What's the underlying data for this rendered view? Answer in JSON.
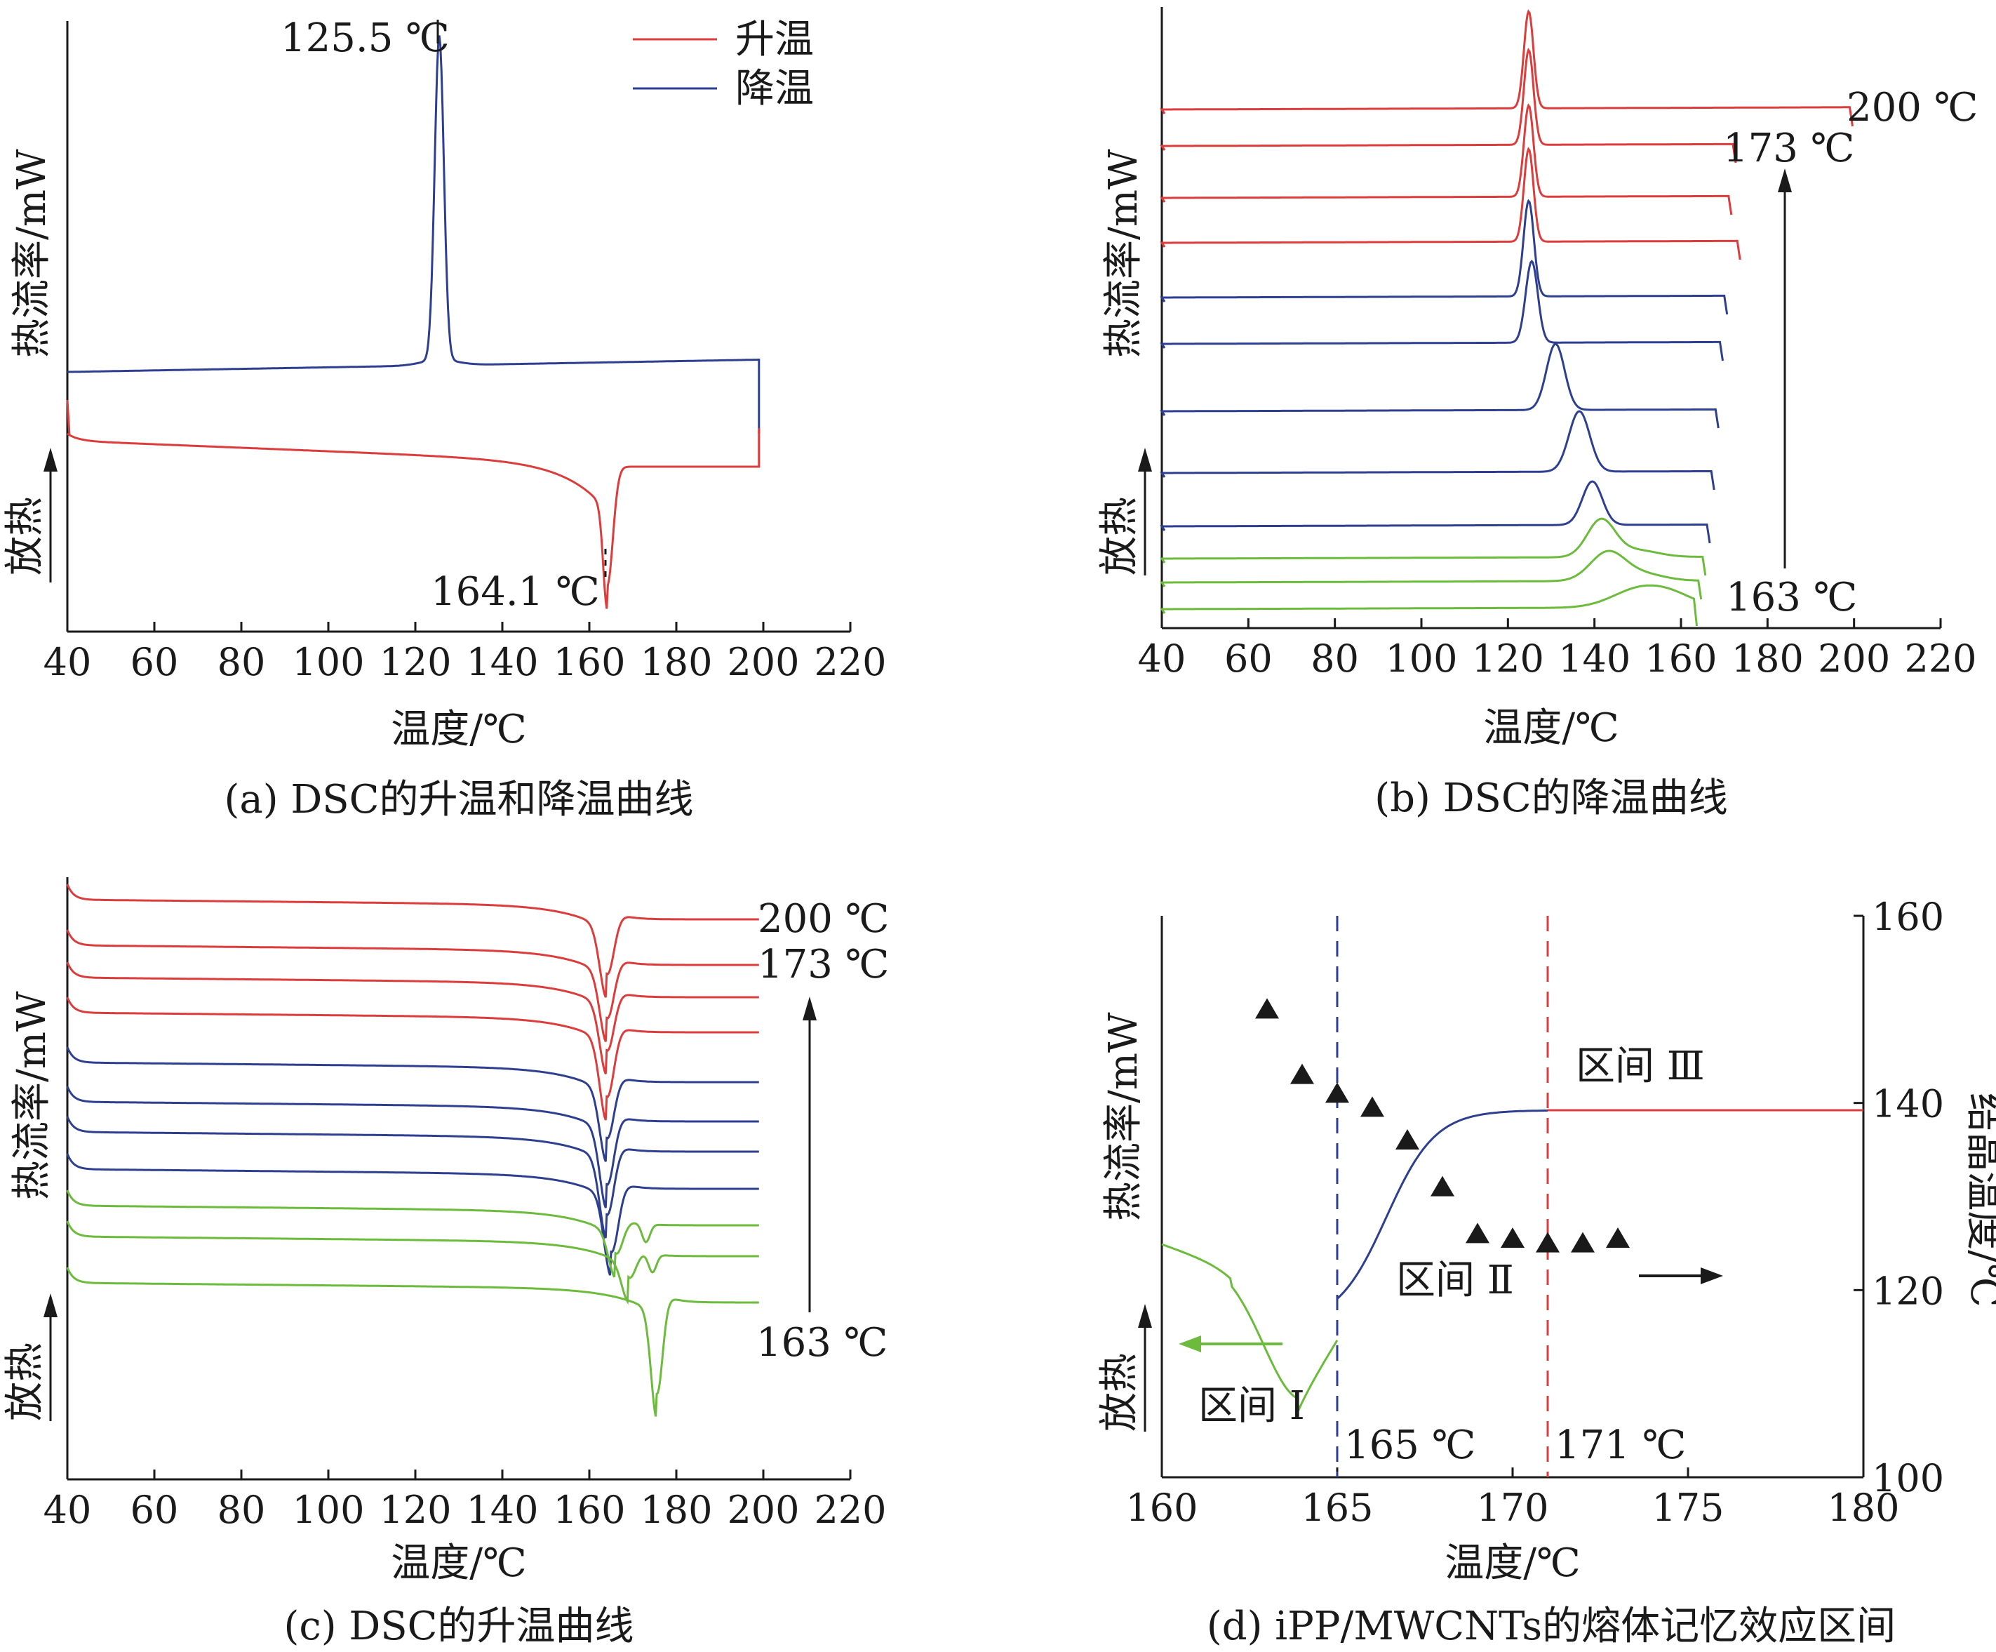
{
  "colors": {
    "heat": "#dc3c3c",
    "cool": "#2e3f8f",
    "green": "#6cbb3c",
    "axis": "#1a1a1a"
  },
  "common": {
    "xlabel": "温度/℃",
    "ylabel": "热流率/mW",
    "exo_label": "放热"
  },
  "chart_data": [
    {
      "id": "a",
      "type": "line",
      "caption": "(a) DSC的升温和降温曲线",
      "xlabel": "温度/℃",
      "ylabel": "热流率/mW",
      "xlim": [
        40,
        220
      ],
      "xticks": [
        "40",
        "60",
        "80",
        "100",
        "120",
        "140",
        "160",
        "180",
        "200",
        "220"
      ],
      "legend": {
        "position": "top-right",
        "items": [
          {
            "name": "升温",
            "color": "#dc3c3c"
          },
          {
            "name": "降温",
            "color": "#2e3f8f"
          }
        ]
      },
      "series": [
        {
          "name": "降温",
          "kind": "cool",
          "x_start": 40,
          "x_end": 199,
          "peak_x": 125.5,
          "direction": "exo"
        },
        {
          "name": "升温",
          "kind": "heat",
          "x_start": 40,
          "x_end": 199,
          "peak_x": 164.1,
          "direction": "endo"
        }
      ],
      "annotations": [
        {
          "text": "125.5 ℃",
          "x": 125.5
        },
        {
          "text": "164.1 ℃",
          "x": 164.1
        }
      ]
    },
    {
      "id": "b",
      "type": "line",
      "caption": "(b) DSC的降温曲线",
      "xlabel": "温度/℃",
      "ylabel": "热流率/mW",
      "xlim": [
        40,
        220
      ],
      "xticks": [
        "40",
        "60",
        "80",
        "100",
        "120",
        "140",
        "160",
        "180",
        "200",
        "220"
      ],
      "curves": [
        {
          "color": "heat",
          "peak_x": 124.8,
          "x_end": 199
        },
        {
          "color": "heat",
          "peak_x": 124.8,
          "x_end": 172
        },
        {
          "color": "heat",
          "peak_x": 124.8,
          "x_end": 171
        },
        {
          "color": "heat",
          "peak_x": 124.8,
          "x_end": 173
        },
        {
          "color": "cool",
          "peak_x": 124.8,
          "x_end": 170
        },
        {
          "color": "cool",
          "peak_x": 125.5,
          "x_end": 169
        },
        {
          "color": "cool",
          "peak_x": 131,
          "x_end": 168
        },
        {
          "color": "cool",
          "peak_x": 136.5,
          "x_end": 167
        },
        {
          "color": "cool",
          "peak_x": 139.5,
          "x_end": 166
        },
        {
          "color": "green",
          "peak_x": 141.5,
          "x_end": 165
        },
        {
          "color": "green",
          "peak_x": 143,
          "x_end": 164
        },
        {
          "color": "green",
          "peak_x": 151,
          "x_end": 163
        }
      ],
      "annotations": [
        {
          "text": "200 ℃"
        },
        {
          "text": "173 ℃"
        },
        {
          "text": "163 ℃"
        }
      ]
    },
    {
      "id": "c",
      "type": "line",
      "caption": "(c) DSC的升温曲线",
      "xlabel": "温度/℃",
      "ylabel": "热流率/mW",
      "xlim": [
        40,
        220
      ],
      "xticks": [
        "40",
        "60",
        "80",
        "100",
        "120",
        "140",
        "160",
        "180",
        "200",
        "220"
      ],
      "curves": [
        {
          "color": "heat",
          "peak_x": 164
        },
        {
          "color": "heat",
          "peak_x": 164
        },
        {
          "color": "heat",
          "peak_x": 164
        },
        {
          "color": "heat",
          "peak_x": 164
        },
        {
          "color": "cool",
          "peak_x": 164
        },
        {
          "color": "cool",
          "peak_x": 164
        },
        {
          "color": "cool",
          "peak_x": 164
        },
        {
          "color": "cool",
          "peak_x": 165
        },
        {
          "color": "green",
          "peak_x": 166,
          "second_x": 173
        },
        {
          "color": "green",
          "peak_x": 169,
          "second_x": 174.5
        },
        {
          "color": "green",
          "peak_x": 175.5
        }
      ],
      "annotations": [
        {
          "text": "200 ℃"
        },
        {
          "text": "173 ℃"
        },
        {
          "text": "163 ℃"
        }
      ]
    },
    {
      "id": "d",
      "type": "scatter",
      "caption": "(d) iPP/MWCNTs的熔体记忆效应区间",
      "xlabel": "温度/℃",
      "ylabel": "热流率/mW",
      "y2label": "结晶温度/℃",
      "xlim": [
        160,
        180
      ],
      "y2lim": [
        100,
        160
      ],
      "xticks": [
        "160",
        "165",
        "170",
        "175",
        "180"
      ],
      "y2ticks": [
        "100",
        "120",
        "140",
        "160"
      ],
      "points": [
        {
          "x": 163,
          "y": 150
        },
        {
          "x": 164,
          "y": 143
        },
        {
          "x": 165,
          "y": 141
        },
        {
          "x": 166,
          "y": 139.5
        },
        {
          "x": 167,
          "y": 136
        },
        {
          "x": 168,
          "y": 131
        },
        {
          "x": 169,
          "y": 126
        },
        {
          "x": 170,
          "y": 125.5
        },
        {
          "x": 171,
          "y": 125
        },
        {
          "x": 172,
          "y": 125
        },
        {
          "x": 173,
          "y": 125.5
        }
      ],
      "vlines": [
        {
          "x": 165,
          "label": "165 ℃",
          "color": "cool"
        },
        {
          "x": 171,
          "label": "171 ℃",
          "color": "heat"
        }
      ],
      "regions": [
        {
          "label": "区间 Ⅰ"
        },
        {
          "label": "区间 Ⅱ"
        },
        {
          "label": "区间 Ⅲ"
        }
      ]
    }
  ]
}
